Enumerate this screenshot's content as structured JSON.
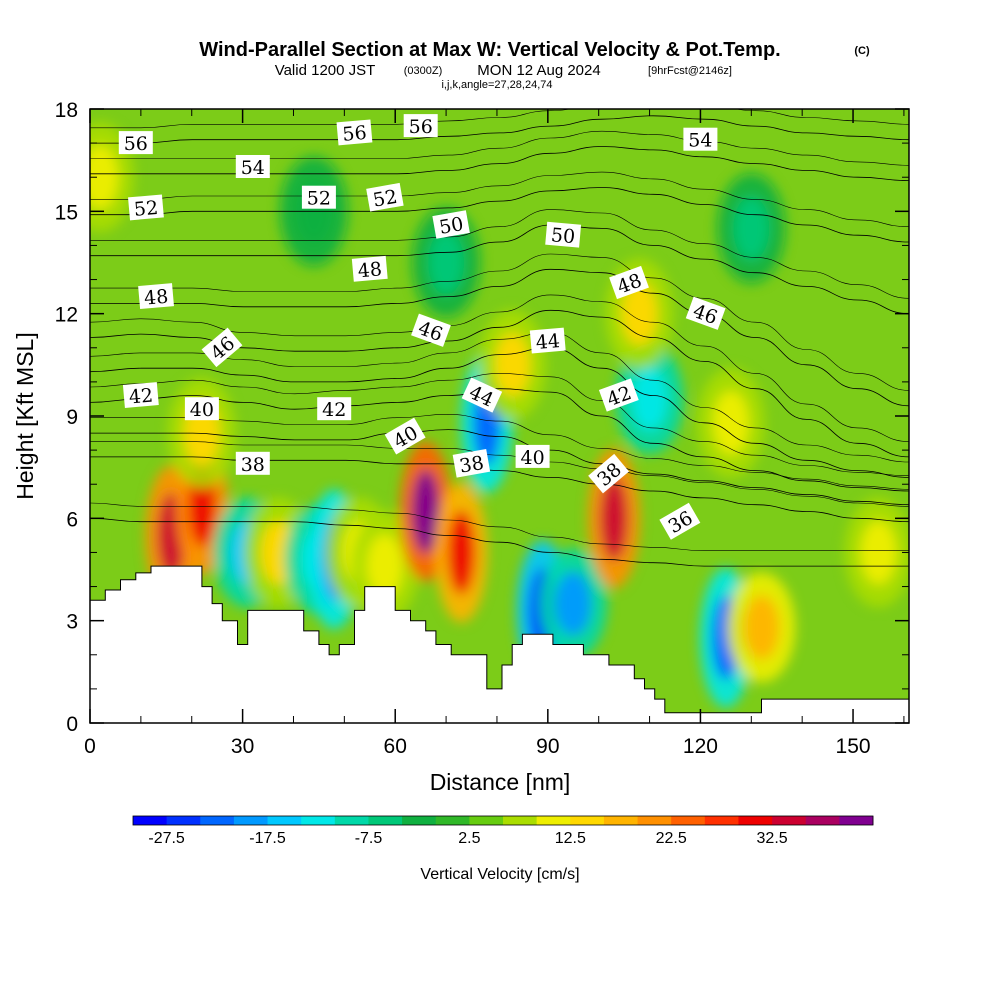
{
  "header": {
    "title": "Wind-Parallel Section at Max W: Vertical Velocity & Pot.Temp.",
    "copyright": "(C)",
    "valid_prefix": "Valid 1200 JST",
    "valid_zulu": "(0300Z)",
    "valid_date": "MON 12 Aug 2024",
    "forecast": "[9hrFcst@2146z]",
    "indices": "i,j,k,angle=27,28,24,74"
  },
  "chart_data": {
    "type": "heatmap",
    "xlabel": "Distance [nm]",
    "ylabel": "Height [Kft MSL]",
    "xlim": [
      0,
      161
    ],
    "ylim": [
      0,
      18
    ],
    "x_ticks": [
      "0",
      "30",
      "60",
      "90",
      "120",
      "150"
    ],
    "y_ticks": [
      "0",
      "3",
      "6",
      "9",
      "12",
      "15",
      "18"
    ],
    "colorbar": {
      "label": "Vertical Velocity [cm/s]",
      "tick_labels": [
        "-27.5",
        "-17.5",
        "-7.5",
        "2.5",
        "12.5",
        "22.5",
        "32.5"
      ],
      "colors": [
        "#0000ff",
        "#0030ff",
        "#0066ff",
        "#0099ff",
        "#00c8ff",
        "#00e8e8",
        "#00d8a8",
        "#00c878",
        "#10b040",
        "#30b828",
        "#66cc10",
        "#aadd00",
        "#eeee00",
        "#ffd800",
        "#ffb400",
        "#ff9000",
        "#ff6000",
        "#ff3000",
        "#ee0000",
        "#cc0030",
        "#aa0060",
        "#800090"
      ]
    },
    "terrain_profile": {
      "x": [
        0,
        3,
        3,
        6,
        6,
        9,
        9,
        12,
        12,
        16,
        16,
        19,
        19,
        22,
        22,
        24,
        24,
        26,
        26,
        29,
        29,
        31,
        31,
        33,
        33,
        38,
        38,
        42,
        42,
        45,
        45,
        47,
        47,
        49,
        49,
        52,
        52,
        54,
        54,
        57,
        57,
        60,
        60,
        63,
        63,
        66,
        66,
        68,
        68,
        71,
        71,
        74,
        74,
        78,
        78,
        81,
        81,
        83,
        83,
        85,
        85,
        87,
        87,
        89,
        89,
        91,
        91,
        94,
        94,
        97,
        97,
        102,
        102,
        107,
        107,
        109,
        109,
        111,
        111,
        113,
        113,
        115,
        115,
        119,
        119,
        122,
        122,
        132,
        132,
        138,
        138,
        141,
        141,
        161
      ],
      "y": [
        3.6,
        3.6,
        3.9,
        3.9,
        4.2,
        4.2,
        4.4,
        4.4,
        4.6,
        4.6,
        4.6,
        4.6,
        4.6,
        4.6,
        4.0,
        4.0,
        3.5,
        3.5,
        3.0,
        3.0,
        2.3,
        2.3,
        3.3,
        3.3,
        3.3,
        3.3,
        3.3,
        3.3,
        2.7,
        2.7,
        2.3,
        2.3,
        2.0,
        2.0,
        2.3,
        2.3,
        3.3,
        3.3,
        4.0,
        4.0,
        4.0,
        4.0,
        3.3,
        3.3,
        3.0,
        3.0,
        2.7,
        2.7,
        2.3,
        2.3,
        2.0,
        2.0,
        2.0,
        2.0,
        1.0,
        1.0,
        1.7,
        1.7,
        2.3,
        2.3,
        2.6,
        2.6,
        2.6,
        2.6,
        2.6,
        2.6,
        2.3,
        2.3,
        2.3,
        2.3,
        2.0,
        2.0,
        1.7,
        1.7,
        1.3,
        1.3,
        1.0,
        1.0,
        0.7,
        0.7,
        0.3,
        0.3,
        0.3,
        0.3,
        0.3,
        0.3,
        0.3,
        0.3,
        0.7,
        0.7,
        0.7,
        0.7,
        0.7,
        0.7
      ]
    },
    "features": [
      {
        "x": 16,
        "y": 5.5,
        "w": 35
      },
      {
        "x": 22,
        "y": 6.4,
        "w": 32
      },
      {
        "x": 22,
        "y": 8.5,
        "w": 12
      },
      {
        "x": 31,
        "y": 5.0,
        "w": -17
      },
      {
        "x": 37,
        "y": 5.0,
        "w": 12
      },
      {
        "x": 45,
        "y": 4.8,
        "w": -15
      },
      {
        "x": 48,
        "y": 4.8,
        "w": -22
      },
      {
        "x": 53,
        "y": 5.0,
        "w": 10
      },
      {
        "x": 58,
        "y": 4.6,
        "w": 10
      },
      {
        "x": 66,
        "y": 6.2,
        "w": 40
      },
      {
        "x": 73,
        "y": 5.0,
        "w": 30
      },
      {
        "x": 78,
        "y": 8.8,
        "w": -25
      },
      {
        "x": 83,
        "y": 10.5,
        "w": 14
      },
      {
        "x": 89,
        "y": 3.3,
        "w": -28
      },
      {
        "x": 95,
        "y": 3.5,
        "w": -20
      },
      {
        "x": 103,
        "y": 6.0,
        "w": 34
      },
      {
        "x": 110,
        "y": 9.5,
        "w": -15
      },
      {
        "x": 108,
        "y": 12.0,
        "w": 12
      },
      {
        "x": 125,
        "y": 2.5,
        "w": -25
      },
      {
        "x": 132,
        "y": 2.8,
        "w": 18
      },
      {
        "x": 126,
        "y": 8.8,
        "w": 10
      },
      {
        "x": 2,
        "y": 16,
        "w": 10
      },
      {
        "x": 155,
        "y": 5.0,
        "w": 10
      },
      {
        "x": 70,
        "y": 13.5,
        "w": -8
      },
      {
        "x": 130,
        "y": 14.5,
        "w": -6
      },
      {
        "x": 44,
        "y": 15.0,
        "w": -5
      }
    ],
    "theta_contours": [
      {
        "value": 36,
        "y": [
          6.0,
          5.9,
          5.9,
          5.9,
          5.9,
          5.8,
          5.7,
          5.5,
          5.3,
          5.0,
          4.8,
          4.7,
          4.6,
          4.6,
          4.6,
          4.6,
          4.6
        ]
      },
      {
        "value": 38,
        "y": [
          7.8,
          7.8,
          7.8,
          7.7,
          7.7,
          7.7,
          7.6,
          7.6,
          7.4,
          7.2,
          7.0,
          6.8,
          6.6,
          6.4,
          6.2,
          6.0,
          5.9
        ]
      },
      {
        "value": 40,
        "y": [
          8.5,
          8.5,
          8.5,
          8.4,
          8.3,
          8.3,
          8.5,
          8.6,
          8.4,
          8.0,
          7.6,
          7.3,
          7.1,
          6.9,
          6.7,
          6.5,
          6.4
        ]
      },
      {
        "value": 42,
        "y": [
          9.4,
          9.5,
          9.6,
          9.4,
          9.2,
          9.3,
          9.4,
          9.6,
          9.8,
          9.7,
          9.0,
          8.2,
          7.8,
          7.4,
          7.1,
          6.9,
          6.8
        ]
      },
      {
        "value": 44,
        "y": [
          10.3,
          10.4,
          10.4,
          10.2,
          10.0,
          10.0,
          10.1,
          10.4,
          10.8,
          11.0,
          10.4,
          9.6,
          8.8,
          8.2,
          7.7,
          7.4,
          7.2
        ]
      },
      {
        "value": 46,
        "y": [
          11.3,
          11.4,
          11.3,
          11.0,
          10.9,
          10.9,
          11.0,
          11.2,
          11.6,
          12.1,
          11.9,
          11.3,
          10.6,
          9.8,
          8.9,
          8.2,
          7.8
        ]
      },
      {
        "value": 48,
        "y": [
          12.3,
          12.3,
          12.3,
          12.2,
          12.2,
          12.2,
          12.3,
          12.5,
          12.8,
          13.3,
          13.2,
          12.6,
          12.0,
          11.3,
          10.5,
          9.8,
          9.3
        ]
      },
      {
        "value": 50,
        "y": [
          13.7,
          13.7,
          13.7,
          13.7,
          13.7,
          13.7,
          13.7,
          13.8,
          14.1,
          14.6,
          14.5,
          14.0,
          13.6,
          13.2,
          12.8,
          12.4,
          12.0
        ]
      },
      {
        "value": 52,
        "y": [
          14.9,
          14.9,
          15.0,
          15.0,
          15.0,
          15.0,
          15.0,
          15.1,
          15.3,
          15.6,
          15.7,
          15.5,
          15.2,
          14.9,
          14.6,
          14.3,
          14.1
        ]
      },
      {
        "value": 54,
        "y": [
          16.1,
          16.1,
          16.1,
          16.1,
          16.1,
          16.1,
          16.1,
          16.2,
          16.4,
          16.7,
          16.9,
          16.8,
          16.6,
          16.4,
          16.2,
          16.0,
          15.9
        ]
      },
      {
        "value": 56,
        "y": [
          17.0,
          17.0,
          17.1,
          17.1,
          17.1,
          17.1,
          17.1,
          17.2,
          17.3,
          17.5,
          17.7,
          17.8,
          17.7,
          17.5,
          17.3,
          17.2,
          17.1
        ]
      }
    ],
    "contour_labels": [
      {
        "text": "56",
        "x": 9,
        "y": 17.0,
        "angle": 0
      },
      {
        "text": "56",
        "x": 52,
        "y": 17.3,
        "angle": -5
      },
      {
        "text": "56",
        "x": 65,
        "y": 17.5,
        "angle": 0
      },
      {
        "text": "54",
        "x": 32,
        "y": 16.3,
        "angle": 0
      },
      {
        "text": "54",
        "x": 120,
        "y": 17.1,
        "angle": 0
      },
      {
        "text": "52",
        "x": 11,
        "y": 15.1,
        "angle": -5
      },
      {
        "text": "52",
        "x": 45,
        "y": 15.4,
        "angle": 0
      },
      {
        "text": "52",
        "x": 58,
        "y": 15.4,
        "angle": -10
      },
      {
        "text": "50",
        "x": 71,
        "y": 14.6,
        "angle": -10
      },
      {
        "text": "50",
        "x": 93,
        "y": 14.3,
        "angle": 5
      },
      {
        "text": "48",
        "x": 13,
        "y": 12.5,
        "angle": -5
      },
      {
        "text": "48",
        "x": 55,
        "y": 13.3,
        "angle": -5
      },
      {
        "text": "48",
        "x": 106,
        "y": 12.9,
        "angle": -20
      },
      {
        "text": "46",
        "x": 26,
        "y": 11.0,
        "angle": -40
      },
      {
        "text": "46",
        "x": 67,
        "y": 11.5,
        "angle": 20
      },
      {
        "text": "46",
        "x": 121,
        "y": 12.0,
        "angle": 20
      },
      {
        "text": "44",
        "x": 77,
        "y": 9.6,
        "angle": 25
      },
      {
        "text": "44",
        "x": 90,
        "y": 11.2,
        "angle": -5
      },
      {
        "text": "42",
        "x": 10,
        "y": 9.6,
        "angle": -5
      },
      {
        "text": "42",
        "x": 48,
        "y": 9.2,
        "angle": 0
      },
      {
        "text": "42",
        "x": 104,
        "y": 9.6,
        "angle": -20
      },
      {
        "text": "40",
        "x": 22,
        "y": 9.2,
        "angle": 0
      },
      {
        "text": "40",
        "x": 62,
        "y": 8.4,
        "angle": -30
      },
      {
        "text": "40",
        "x": 87,
        "y": 7.8,
        "angle": 0
      },
      {
        "text": "38",
        "x": 32,
        "y": 7.6,
        "angle": 0
      },
      {
        "text": "38",
        "x": 75,
        "y": 7.6,
        "angle": -10
      },
      {
        "text": "38",
        "x": 102,
        "y": 7.3,
        "angle": -40
      },
      {
        "text": "36",
        "x": 116,
        "y": 5.9,
        "angle": -30
      }
    ]
  }
}
